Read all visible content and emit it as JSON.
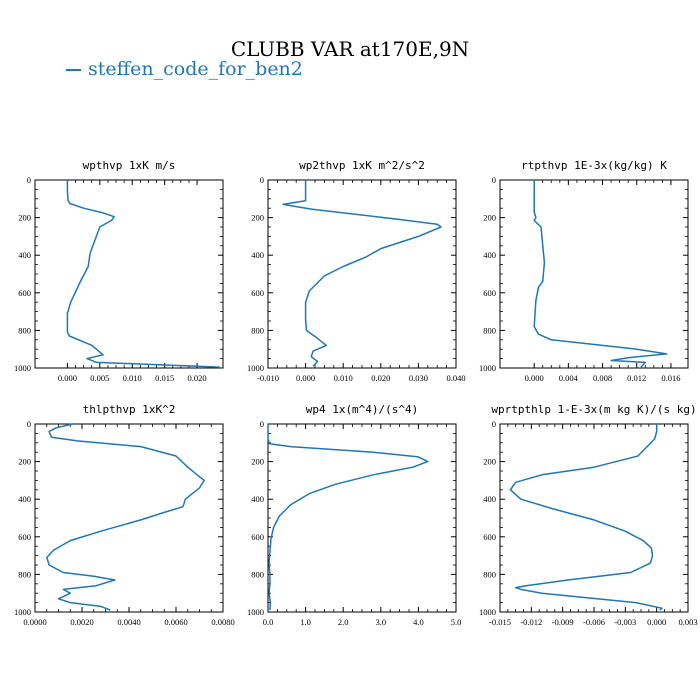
{
  "page": {
    "title": "CLUBB VAR at170E,9N",
    "legend": {
      "label": "steffen_code_for_ben2",
      "color": "#1f77b4"
    }
  },
  "chart_data": [
    {
      "type": "line",
      "title": "wpthvp  1xK m/s",
      "xlim": [
        -0.005,
        0.024
      ],
      "ylim": [
        1000,
        0
      ],
      "xticks": [
        0.0,
        0.005,
        0.01,
        0.015,
        0.02
      ],
      "xtick_labels": [
        "0.000",
        "0.005",
        "0.010",
        "0.015",
        "0.020"
      ],
      "yticks": [
        0,
        200,
        400,
        600,
        800,
        1000
      ],
      "ytick_labels": [
        "0",
        "200",
        "400",
        "600",
        "800",
        "1000"
      ],
      "series": [
        {
          "color": "#1f77b4",
          "x": [
            0.0,
            0.0,
            0.0001,
            0.0004,
            0.0025,
            0.0055,
            0.0072,
            0.0068,
            0.005,
            0.0035,
            0.0032,
            0.002,
            0.0005,
            0.0,
            0.0,
            0.0003,
            0.0038,
            0.0055,
            0.003,
            0.0045,
            0.0235
          ],
          "y": [
            0,
            60,
            110,
            125,
            150,
            175,
            195,
            215,
            250,
            390,
            460,
            540,
            650,
            710,
            810,
            830,
            880,
            930,
            950,
            970,
            995
          ]
        }
      ]
    },
    {
      "type": "line",
      "title": "wp2thvp  1xK m^2/s^2",
      "xlim": [
        -0.01,
        0.04
      ],
      "ylim": [
        1000,
        0
      ],
      "xticks": [
        -0.01,
        0.0,
        0.01,
        0.02,
        0.03,
        0.04
      ],
      "xtick_labels": [
        "-0.010",
        "0.000",
        "0.010",
        "0.020",
        "0.030",
        "0.040"
      ],
      "yticks": [
        0,
        200,
        400,
        600,
        800,
        1000
      ],
      "ytick_labels": [
        "0",
        "200",
        "400",
        "600",
        "800",
        "1000"
      ],
      "series": [
        {
          "color": "#1f77b4",
          "x": [
            0.0,
            0.0,
            0.0,
            -0.006,
            0.0015,
            0.025,
            0.035,
            0.036,
            0.03,
            0.02,
            0.016,
            0.01,
            0.005,
            0.001,
            0.0,
            0.0,
            0.0002,
            0.003,
            0.0055,
            0.002,
            0.0015,
            0.0032,
            0.002
          ],
          "y": [
            0,
            55,
            110,
            130,
            155,
            210,
            235,
            250,
            300,
            365,
            410,
            460,
            510,
            590,
            650,
            740,
            800,
            840,
            880,
            910,
            940,
            965,
            990
          ]
        }
      ]
    },
    {
      "type": "line",
      "title": "rtpthvp  1E-3x(kg/kg) K",
      "xlim": [
        -0.004,
        0.018
      ],
      "ylim": [
        1000,
        0
      ],
      "xticks": [
        0.0,
        0.004,
        0.008,
        0.012,
        0.016
      ],
      "xtick_labels": [
        "0.000",
        "0.004",
        "0.008",
        "0.012",
        "0.016"
      ],
      "yticks": [
        0,
        200,
        400,
        600,
        800,
        1000
      ],
      "ytick_labels": [
        "0",
        "200",
        "400",
        "600",
        "800",
        "1000"
      ],
      "series": [
        {
          "color": "#1f77b4",
          "x": [
            0.0,
            0.0,
            0.0,
            0.0002,
            0.0,
            0.0008,
            0.0012,
            0.001,
            0.0005,
            0.0002,
            0.0,
            0.0005,
            0.002,
            0.008,
            0.012,
            0.0155,
            0.011,
            0.009,
            0.013,
            0.0125
          ],
          "y": [
            0,
            100,
            170,
            200,
            215,
            250,
            440,
            540,
            570,
            640,
            780,
            820,
            850,
            880,
            900,
            925,
            945,
            960,
            970,
            995
          ]
        }
      ]
    },
    {
      "type": "line",
      "title": "thlpthvp  1xK^2",
      "xlim": [
        0.0,
        0.008
      ],
      "ylim": [
        1000,
        0
      ],
      "xticks": [
        0.0,
        0.002,
        0.004,
        0.006,
        0.008
      ],
      "xtick_labels": [
        "0.0000",
        "0.0020",
        "0.0040",
        "0.0060",
        "0.0080"
      ],
      "yticks": [
        0,
        200,
        400,
        600,
        800,
        1000
      ],
      "ytick_labels": [
        "0",
        "200",
        "400",
        "600",
        "800",
        "1000"
      ],
      "series": [
        {
          "color": "#1f77b4",
          "x": [
            0.0016,
            0.0009,
            0.0006,
            0.0007,
            0.0018,
            0.0045,
            0.006,
            0.0065,
            0.0069,
            0.0072,
            0.007,
            0.0066,
            0.0064,
            0.0063,
            0.0055,
            0.0045,
            0.0028,
            0.0015,
            0.0008,
            0.0005,
            0.0006,
            0.0012,
            0.0025,
            0.0034,
            0.0026,
            0.0012,
            0.0015,
            0.001,
            0.0015,
            0.0028,
            0.0032
          ],
          "y": [
            0,
            20,
            40,
            70,
            90,
            120,
            170,
            230,
            270,
            300,
            340,
            380,
            400,
            440,
            470,
            510,
            570,
            620,
            670,
            710,
            750,
            790,
            810,
            830,
            860,
            880,
            900,
            930,
            950,
            970,
            990
          ]
        }
      ]
    },
    {
      "type": "line",
      "title": "wp4  1x(m^4)/(s^4)",
      "xlim": [
        0.0,
        5.0
      ],
      "ylim": [
        1000,
        0
      ],
      "xticks": [
        0.0,
        1.0,
        2.0,
        3.0,
        4.0,
        5.0
      ],
      "xtick_labels": [
        "0.0",
        "1.0",
        "2.0",
        "3.0",
        "4.0",
        "5.0"
      ],
      "yticks": [
        0,
        200,
        400,
        600,
        800,
        1000
      ],
      "ytick_labels": [
        "0",
        "200",
        "400",
        "600",
        "800",
        "1000"
      ],
      "series": [
        {
          "color": "#1f77b4",
          "x": [
            0.0,
            0.0,
            0.04,
            0.6,
            2.8,
            4.0,
            4.25,
            3.85,
            2.8,
            1.8,
            1.1,
            0.6,
            0.3,
            0.15,
            0.08,
            0.05,
            0.03,
            0.05,
            0.05,
            0.03,
            0.06,
            0.05
          ],
          "y": [
            0,
            80,
            105,
            120,
            150,
            175,
            200,
            230,
            270,
            320,
            370,
            430,
            490,
            550,
            610,
            680,
            740,
            800,
            850,
            900,
            950,
            990
          ]
        }
      ]
    },
    {
      "type": "line",
      "title": "wprtpthlp  1-E-3x(m kg K)/(s kg)",
      "xlim": [
        -0.015,
        0.003
      ],
      "ylim": [
        1000,
        0
      ],
      "xticks": [
        -0.015,
        -0.012,
        -0.009,
        -0.006,
        -0.003,
        0.0,
        0.003
      ],
      "xtick_labels": [
        "-0.015",
        "-0.012",
        "-0.009",
        "-0.006",
        "-0.003",
        "0.000",
        "0.003"
      ],
      "yticks": [
        0,
        200,
        400,
        600,
        800,
        1000
      ],
      "ytick_labels": [
        "0",
        "200",
        "400",
        "600",
        "800",
        "1000"
      ],
      "series": [
        {
          "color": "#1f77b4",
          "x": [
            0.0,
            0.0,
            -0.0002,
            -0.0018,
            -0.006,
            -0.011,
            -0.0135,
            -0.014,
            -0.013,
            -0.01,
            -0.006,
            -0.003,
            -0.0013,
            -0.0005,
            -0.0004,
            -0.0006,
            -0.0025,
            -0.0085,
            -0.0125,
            -0.0135,
            -0.013,
            -0.011,
            -0.002,
            0.0005,
            0.0003
          ],
          "y": [
            0,
            40,
            80,
            170,
            230,
            270,
            310,
            350,
            400,
            450,
            510,
            570,
            620,
            660,
            700,
            740,
            790,
            830,
            860,
            870,
            880,
            900,
            950,
            980,
            990
          ]
        }
      ]
    }
  ]
}
